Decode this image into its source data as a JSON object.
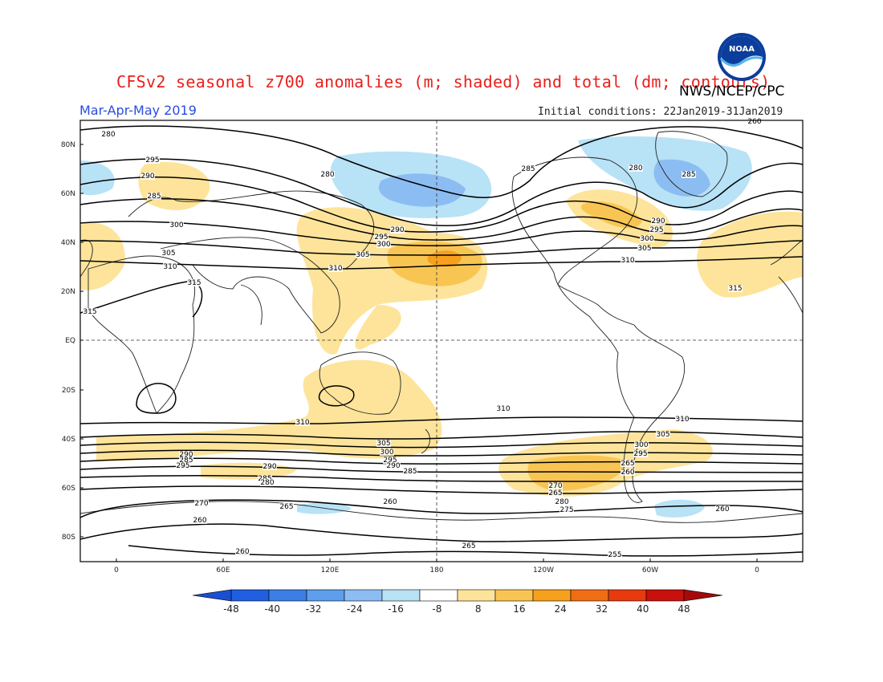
{
  "header": {
    "title": "CFSv2 seasonal z700 anomalies (m; shaded) and total (dm; contours)",
    "agency": "NWS/NCEP/CPC",
    "period": "Mar-Apr-May 2019",
    "initial_conditions": "Initial conditions: 22Jan2019-31Jan2019",
    "logo_text": "NOAA"
  },
  "map": {
    "lat_labels": [
      "80N",
      "60N",
      "40N",
      "20N",
      "EQ",
      "20S",
      "40S",
      "60S",
      "80S"
    ],
    "lon_labels": [
      "0",
      "60E",
      "120E",
      "180",
      "120W",
      "60W",
      "0"
    ],
    "contour_labels": [
      "280",
      "290",
      "295",
      "285",
      "280",
      "285",
      "280",
      "285",
      "260",
      "300",
      "290",
      "295",
      "300",
      "305",
      "290",
      "295",
      "300",
      "305",
      "310",
      "305",
      "310",
      "315",
      "310",
      "315",
      "315",
      "310",
      "310",
      "310",
      "305",
      "300",
      "295",
      "290",
      "285",
      "305",
      "300",
      "295",
      "290",
      "285",
      "295",
      "290",
      "285",
      "280",
      "270",
      "265",
      "280",
      "275",
      "270",
      "265",
      "260",
      "260",
      "260",
      "265",
      "260",
      "255",
      "265",
      "260"
    ]
  },
  "colorbar": {
    "labels": [
      "-48",
      "-40",
      "-32",
      "-24",
      "-16",
      "-8",
      "8",
      "16",
      "24",
      "32",
      "40",
      "48"
    ],
    "colors": [
      "#1f5fe0",
      "#3c7ee6",
      "#5f9ded",
      "#8cbdf2",
      "#b8e2f6",
      "#ffffff",
      "#fde49a",
      "#f9c552",
      "#f6a01d",
      "#f06d14",
      "#e83a0f",
      "#c8100c"
    ],
    "end_low_color": "#1a4fd1",
    "end_high_color": "#a50a0a"
  }
}
